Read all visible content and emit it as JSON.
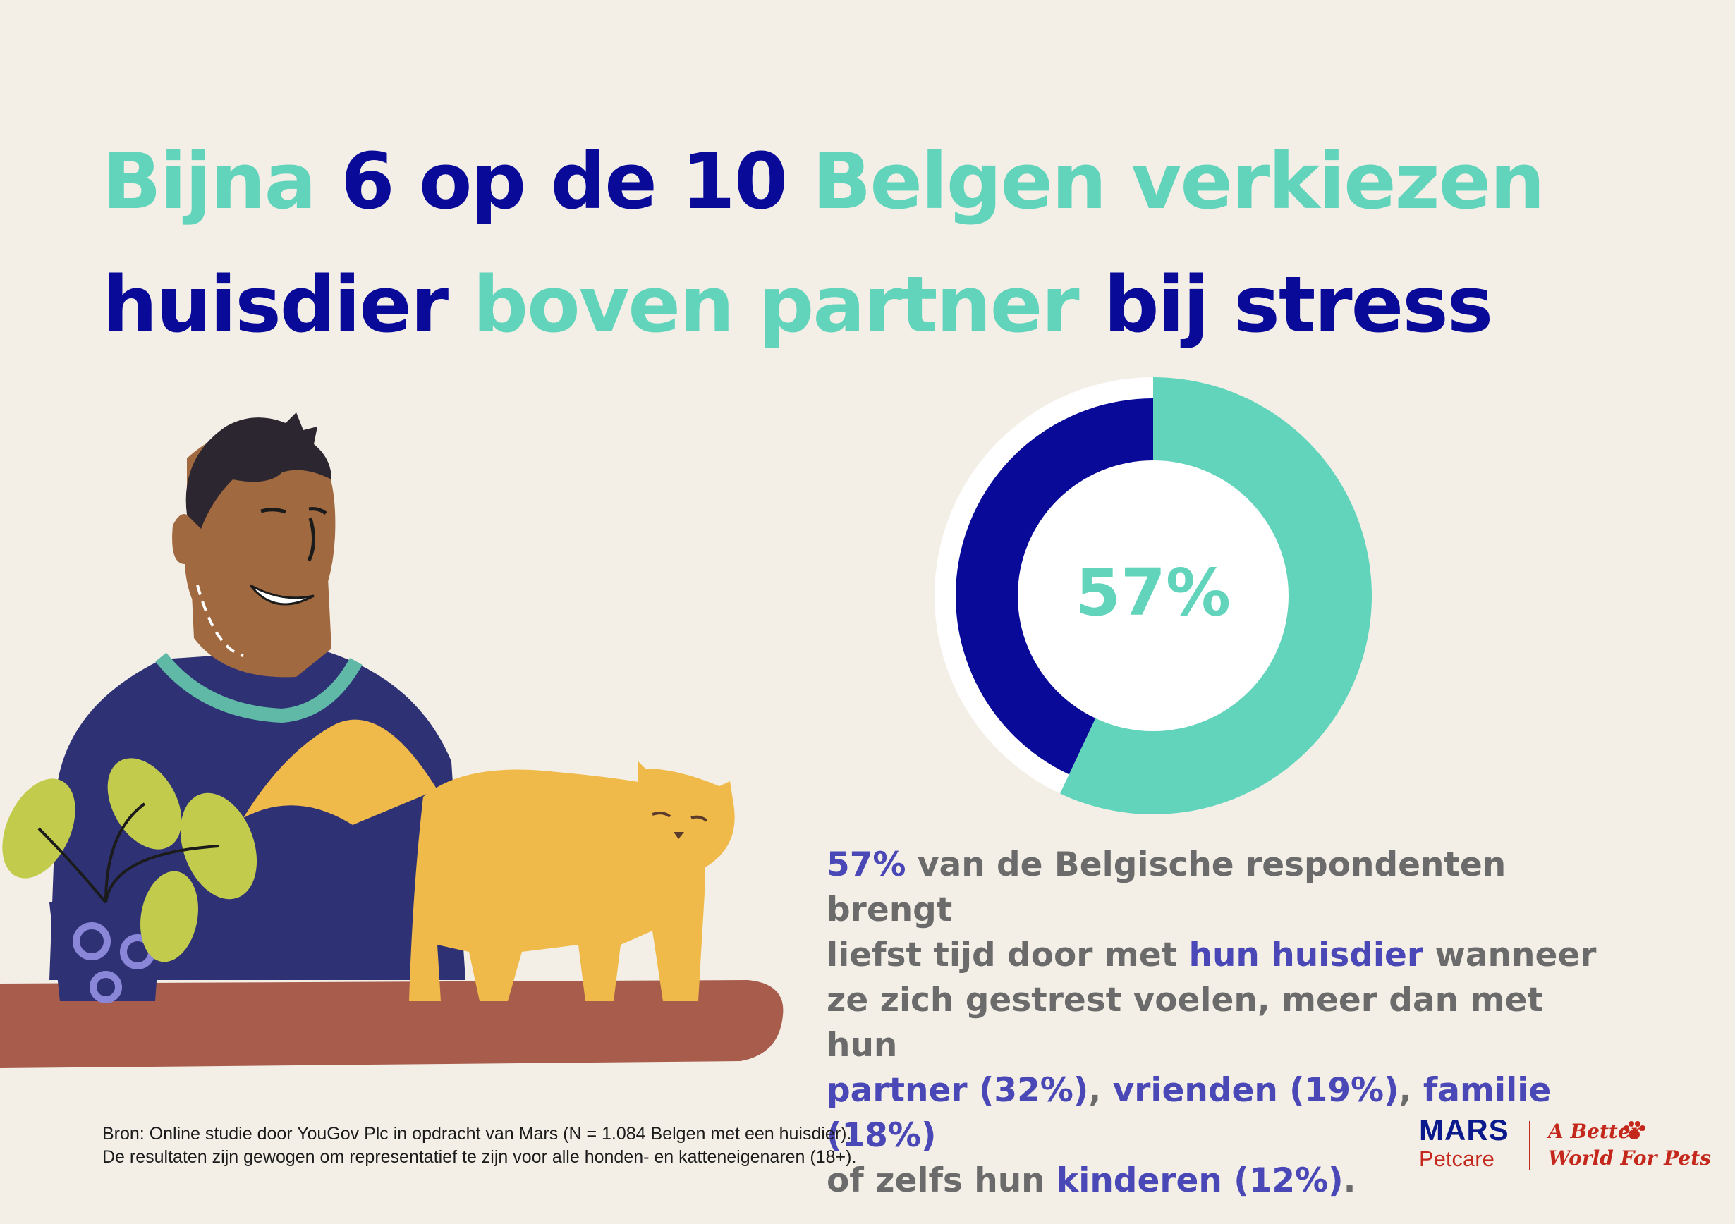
{
  "headline": {
    "line1": [
      {
        "text": "Bijna ",
        "tone": "teal"
      },
      {
        "text": "6 op de 10 ",
        "tone": "navy"
      },
      {
        "text": "Belgen verkiezen",
        "tone": "teal"
      }
    ],
    "line2": [
      {
        "text": "huisdier ",
        "tone": "navy"
      },
      {
        "text": "boven partner ",
        "tone": "teal"
      },
      {
        "text": "bij stress",
        "tone": "navy"
      }
    ]
  },
  "chart_data": {
    "type": "pie",
    "style": "donut",
    "center_label": "57%",
    "slices": [
      {
        "value": 57,
        "color": "#62d4bb"
      },
      {
        "value": 43,
        "color": "#0a0a99"
      }
    ]
  },
  "body": {
    "lines": [
      [
        {
          "text": "57%",
          "hl": true
        },
        {
          "text": " van de Belgische respondenten brengt",
          "hl": false
        }
      ],
      [
        {
          "text": "liefst tijd door met ",
          "hl": false
        },
        {
          "text": "hun huisdier",
          "hl": true
        },
        {
          "text": " wanneer",
          "hl": false
        }
      ],
      [
        {
          "text": "ze zich gestrest voelen, meer dan met hun",
          "hl": false
        }
      ],
      [
        {
          "text": "partner (32%)",
          "hl": true
        },
        {
          "text": ", ",
          "hl": false
        },
        {
          "text": "vrienden (19%)",
          "hl": true
        },
        {
          "text": ", ",
          "hl": false
        },
        {
          "text": "familie (18%)",
          "hl": true
        }
      ],
      [
        {
          "text": "of zelfs hun ",
          "hl": false
        },
        {
          "text": "kinderen (12%)",
          "hl": true
        },
        {
          "text": ".",
          "hl": false
        }
      ]
    ]
  },
  "source": {
    "line1": "Bron: Online studie door YouGov Plc in opdracht van Mars (N = 1.084 Belgen met een huisdier).",
    "line2": "De resultaten zijn gewogen om representatief te zijn voor alle honden- en katteneigenaren (18+)."
  },
  "logo": {
    "brand": "MARS",
    "sub": "Petcare",
    "tagline_line1": "A Better",
    "tagline_line2": "World For Pets"
  },
  "colors": {
    "background": "#f3efe7",
    "teal": "#62d4bb",
    "navy": "#0a0a99",
    "highlight": "#4a47b6",
    "body_gray": "#6b6b6b",
    "brand_red": "#c4281c"
  },
  "illustration": {
    "subjects": [
      "man",
      "cat",
      "potted-plant",
      "table"
    ]
  }
}
